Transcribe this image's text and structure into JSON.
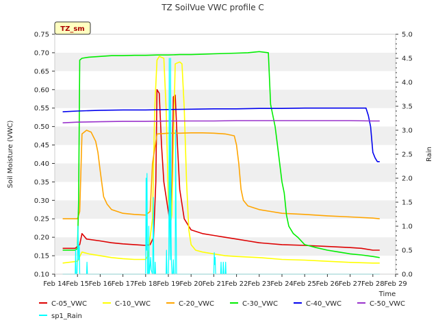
{
  "chart_data": {
    "type": "line",
    "title": "TZ SoilVue VWC profile C",
    "station_tag": "TZ_sm",
    "xlabel": "Time",
    "ylabel": "Soil Moisture (VWC)",
    "y2label": "Rain",
    "xlim": [
      14,
      29
    ],
    "ylim": [
      0.1,
      0.75
    ],
    "y2lim": [
      0.0,
      5.0
    ],
    "x_ticks": [
      "Feb 14",
      "Feb 15",
      "Feb 16",
      "Feb 17",
      "Feb 18",
      "Feb 19",
      "Feb 20",
      "Feb 21",
      "Feb 22",
      "Feb 23",
      "Feb 24",
      "Feb 25",
      "Feb 26",
      "Feb 27",
      "Feb 28",
      "Feb 29"
    ],
    "y_ticks": [
      "0.10",
      "0.15",
      "0.20",
      "0.25",
      "0.30",
      "0.35",
      "0.40",
      "0.45",
      "0.50",
      "0.55",
      "0.60",
      "0.65",
      "0.70",
      "0.75"
    ],
    "y2_ticks": [
      "0.0",
      "0.5",
      "1.0",
      "1.5",
      "2.0",
      "2.5",
      "3.0",
      "3.5",
      "4.0",
      "4.5",
      "5.0"
    ],
    "legend_position": "bottom",
    "series": [
      {
        "name": "C-05_VWC",
        "color": "#dd0000",
        "axis": "left",
        "x": [
          14.35,
          14.9,
          15.1,
          15.2,
          15.4,
          16.0,
          16.5,
          17.0,
          17.5,
          18.0,
          18.2,
          18.35,
          18.45,
          18.5,
          18.6,
          18.7,
          18.8,
          18.95,
          19.05,
          19.15,
          19.22,
          19.3,
          19.4,
          19.5,
          19.7,
          20.0,
          20.5,
          21.0,
          21.5,
          22.0,
          22.5,
          23.0,
          24.0,
          25.0,
          26.0,
          27.0,
          27.5,
          28.0,
          28.3
        ],
        "y": [
          0.17,
          0.17,
          0.18,
          0.21,
          0.195,
          0.19,
          0.185,
          0.182,
          0.18,
          0.178,
          0.18,
          0.2,
          0.35,
          0.6,
          0.59,
          0.45,
          0.35,
          0.29,
          0.25,
          0.29,
          0.58,
          0.585,
          0.45,
          0.33,
          0.25,
          0.22,
          0.21,
          0.205,
          0.2,
          0.195,
          0.19,
          0.185,
          0.18,
          0.178,
          0.175,
          0.172,
          0.17,
          0.165,
          0.165
        ]
      },
      {
        "name": "C-10_VWC",
        "color": "#ffff00",
        "axis": "left",
        "x": [
          14.35,
          15.0,
          15.2,
          15.5,
          16.0,
          16.5,
          17.0,
          17.5,
          18.0,
          18.1,
          18.3,
          18.4,
          18.5,
          18.6,
          18.8,
          18.9,
          19.0,
          19.1,
          19.15,
          19.3,
          19.5,
          19.6,
          19.7,
          19.8,
          19.9,
          20.0,
          20.2,
          20.5,
          21.0,
          21.5,
          22.0,
          23.0,
          24.0,
          25.0,
          26.0,
          27.0,
          28.0,
          28.3
        ],
        "y": [
          0.13,
          0.135,
          0.16,
          0.155,
          0.15,
          0.145,
          0.142,
          0.14,
          0.14,
          0.15,
          0.25,
          0.55,
          0.68,
          0.69,
          0.685,
          0.55,
          0.3,
          0.24,
          0.26,
          0.67,
          0.675,
          0.67,
          0.55,
          0.35,
          0.22,
          0.18,
          0.165,
          0.16,
          0.155,
          0.15,
          0.148,
          0.145,
          0.14,
          0.138,
          0.135,
          0.132,
          0.13,
          0.13
        ]
      },
      {
        "name": "C-20_VWC",
        "color": "#ffa500",
        "axis": "left",
        "x": [
          14.35,
          15.0,
          15.1,
          15.2,
          15.4,
          15.6,
          15.8,
          15.9,
          16.0,
          16.15,
          16.3,
          16.5,
          17.0,
          17.5,
          18.0,
          18.2,
          18.3,
          18.5,
          19.0,
          19.5,
          20.0,
          20.5,
          21.0,
          21.5,
          21.9,
          22.0,
          22.1,
          22.2,
          22.3,
          22.5,
          23.0,
          23.5,
          24.0,
          25.0,
          26.0,
          27.0,
          28.0,
          28.3
        ],
        "y": [
          0.25,
          0.25,
          0.27,
          0.48,
          0.49,
          0.485,
          0.46,
          0.43,
          0.38,
          0.31,
          0.29,
          0.275,
          0.265,
          0.262,
          0.26,
          0.27,
          0.4,
          0.48,
          0.482,
          0.482,
          0.483,
          0.483,
          0.482,
          0.48,
          0.475,
          0.45,
          0.4,
          0.33,
          0.3,
          0.285,
          0.275,
          0.27,
          0.265,
          0.262,
          0.258,
          0.255,
          0.252,
          0.25
        ]
      },
      {
        "name": "C-30_VWC",
        "color": "#00ee00",
        "axis": "left",
        "x": [
          14.35,
          14.9,
          15.0,
          15.05,
          15.1,
          15.2,
          15.5,
          16.0,
          16.5,
          17.0,
          17.5,
          18.0,
          18.5,
          19.0,
          19.5,
          20.0,
          20.5,
          21.0,
          21.5,
          22.0,
          22.5,
          23.0,
          23.4,
          23.5,
          23.6,
          23.7,
          23.8,
          23.9,
          24.0,
          24.1,
          24.2,
          24.3,
          24.5,
          24.7,
          25.0,
          25.5,
          26.0,
          26.5,
          27.0,
          27.5,
          28.0,
          28.3
        ],
        "y": [
          0.165,
          0.165,
          0.17,
          0.3,
          0.68,
          0.685,
          0.688,
          0.69,
          0.692,
          0.692,
          0.693,
          0.693,
          0.694,
          0.694,
          0.695,
          0.695,
          0.696,
          0.697,
          0.698,
          0.699,
          0.7,
          0.703,
          0.7,
          0.56,
          0.53,
          0.5,
          0.45,
          0.4,
          0.35,
          0.32,
          0.26,
          0.23,
          0.21,
          0.2,
          0.18,
          0.172,
          0.165,
          0.16,
          0.155,
          0.152,
          0.148,
          0.145
        ]
      },
      {
        "name": "C-40_VWC",
        "color": "#0000ee",
        "axis": "left",
        "x": [
          14.35,
          15.0,
          16.0,
          17.0,
          18.0,
          19.0,
          20.0,
          21.0,
          22.0,
          23.0,
          24.0,
          25.0,
          26.0,
          27.0,
          27.7,
          27.8,
          27.9,
          28.0,
          28.1,
          28.2,
          28.3
        ],
        "y": [
          0.54,
          0.542,
          0.544,
          0.545,
          0.545,
          0.546,
          0.547,
          0.548,
          0.548,
          0.549,
          0.549,
          0.55,
          0.55,
          0.55,
          0.55,
          0.53,
          0.5,
          0.43,
          0.415,
          0.405,
          0.405
        ]
      },
      {
        "name": "C-50_VWC",
        "color": "#9932cc",
        "axis": "left",
        "x": [
          14.35,
          15.0,
          16.0,
          17.0,
          18.0,
          19.0,
          20.0,
          21.0,
          22.0,
          23.0,
          24.0,
          25.0,
          26.0,
          27.0,
          28.0,
          28.3
        ],
        "y": [
          0.51,
          0.512,
          0.513,
          0.514,
          0.514,
          0.515,
          0.515,
          0.515,
          0.516,
          0.516,
          0.516,
          0.516,
          0.516,
          0.516,
          0.515,
          0.515
        ]
      },
      {
        "name": "sp1_Rain",
        "color": "#00ffff",
        "axis": "right",
        "x": [
          14.35,
          14.9,
          14.92,
          14.94,
          14.98,
          15.0,
          15.02,
          15.05,
          15.08,
          15.1,
          15.4,
          15.42,
          15.44,
          17.9,
          18.0,
          18.02,
          18.04,
          18.06,
          18.08,
          18.12,
          18.14,
          18.16,
          18.2,
          18.22,
          18.24,
          18.3,
          18.32,
          18.34,
          18.36,
          18.4,
          18.42,
          18.44,
          18.9,
          18.92,
          18.94,
          19.0,
          19.02,
          19.04,
          19.06,
          19.08,
          19.1,
          19.12,
          19.14,
          19.16,
          19.2,
          19.22,
          19.24,
          19.3,
          19.32,
          19.34,
          19.36,
          19.4,
          21.0,
          21.02,
          21.04,
          21.06,
          21.08,
          21.3,
          21.32,
          21.34,
          21.36,
          21.4,
          21.42,
          21.44,
          21.46,
          21.5,
          21.52,
          21.54,
          21.56,
          28.3
        ],
        "y": [
          0,
          0,
          0.5,
          0,
          0,
          0.3,
          1.0,
          0.3,
          0.6,
          0,
          0,
          0.25,
          0,
          0,
          0,
          2.0,
          0.5,
          2.1,
          0,
          0,
          1.0,
          0,
          0.2,
          0.35,
          0.1,
          0,
          0.5,
          1.6,
          0,
          0,
          0.25,
          0,
          0,
          0.5,
          0,
          0,
          0.5,
          4.5,
          1.0,
          0.3,
          4.5,
          0.8,
          0.2,
          0,
          0,
          0.3,
          0,
          0,
          3.0,
          1.2,
          0,
          0,
          0,
          0.45,
          0.2,
          0.35,
          0,
          0,
          0.25,
          0,
          0,
          0,
          0.25,
          0,
          0,
          0,
          0.25,
          0,
          0,
          0
        ]
      }
    ]
  }
}
